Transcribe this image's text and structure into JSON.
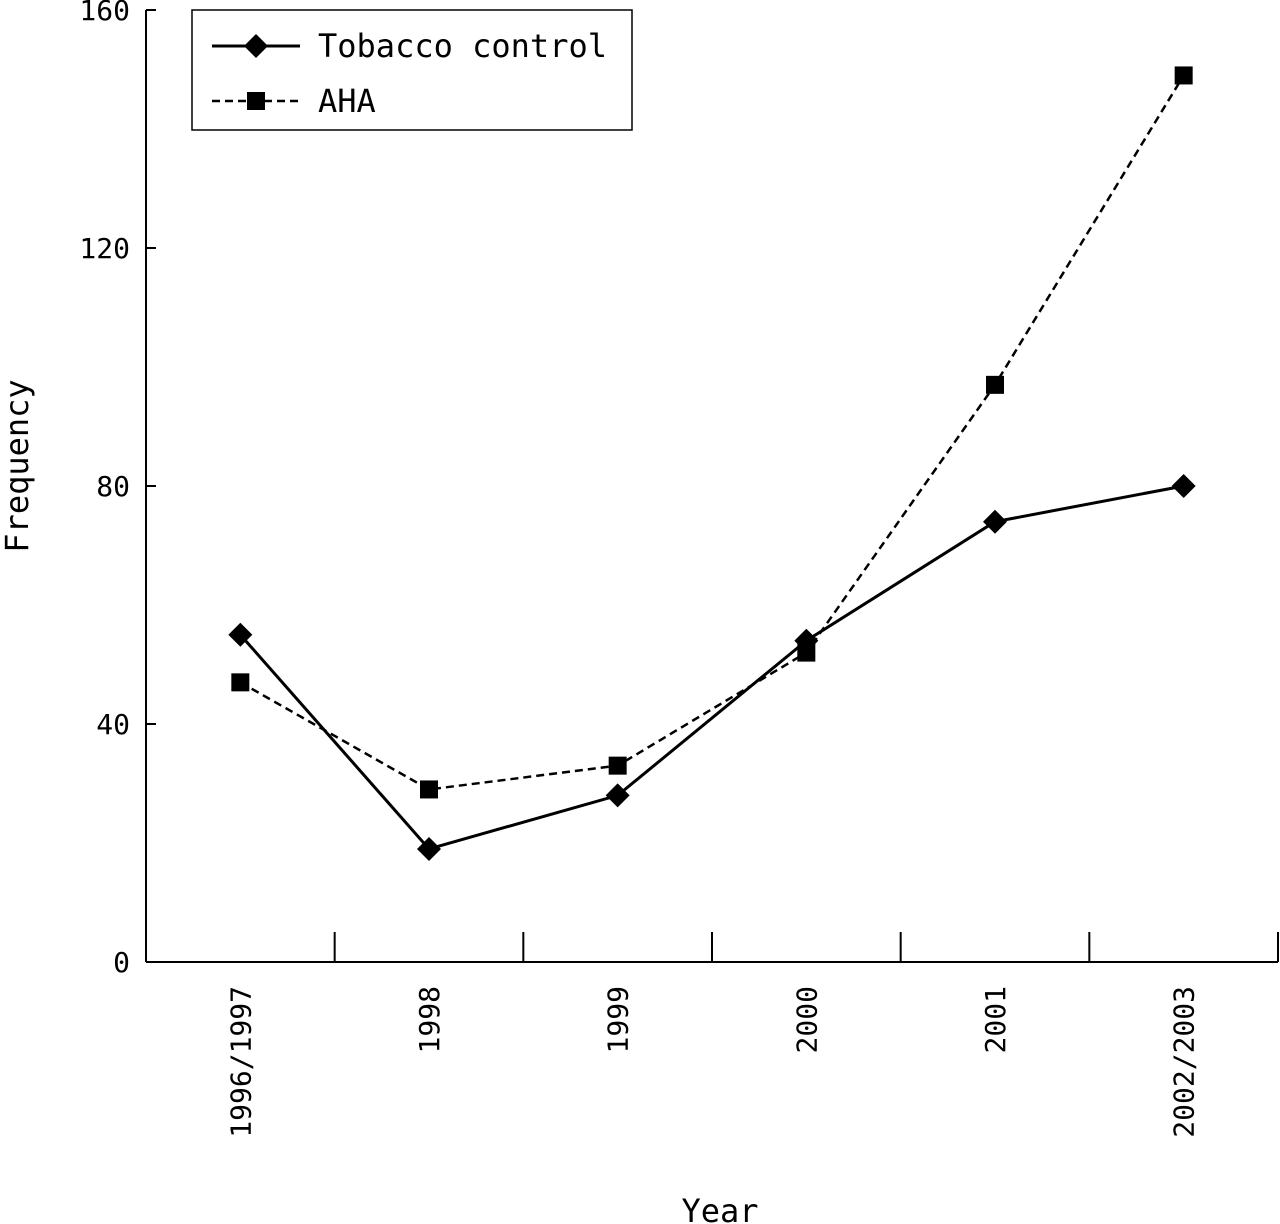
{
  "chart_data": {
    "type": "line",
    "xlabel": "Year",
    "ylabel": "Frequency",
    "categories": [
      "1996/1997",
      "1998",
      "1999",
      "2000",
      "2001",
      "2002/2003"
    ],
    "ylim": [
      0,
      160
    ],
    "yticks": [
      0,
      40,
      80,
      120,
      160
    ],
    "grid": false,
    "legend_position": "top-left",
    "series": [
      {
        "name": "Tobacco control",
        "values": [
          55,
          19,
          28,
          54,
          74,
          80
        ],
        "line_style": "solid",
        "marker": "diamond",
        "color": "#000000"
      },
      {
        "name": "AHA",
        "values": [
          47,
          29,
          33,
          52,
          97,
          149
        ],
        "line_style": "dashed",
        "marker": "square",
        "color": "#000000"
      }
    ]
  }
}
